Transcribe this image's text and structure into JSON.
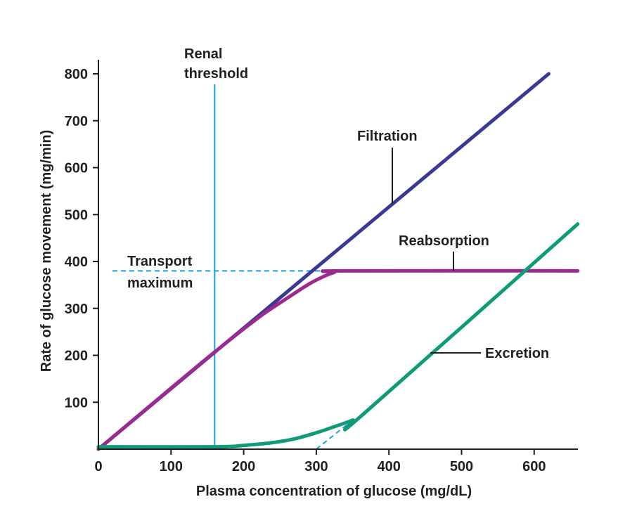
{
  "chart_data": {
    "type": "line",
    "title": "",
    "xlabel": "Plasma concentration of glucose (mg/dL)",
    "ylabel": "Rate of glucose movement (mg/min)",
    "xlim": [
      0,
      660
    ],
    "ylim": [
      0,
      800
    ],
    "x_ticks": [
      "0",
      "100",
      "200",
      "300",
      "400",
      "500",
      "600"
    ],
    "y_ticks": [
      "100",
      "200",
      "300",
      "400",
      "500",
      "600",
      "700",
      "800"
    ],
    "grid": false,
    "series": [
      {
        "name": "Filtration",
        "color": "#3a3a93",
        "points": [
          [
            0,
            0
          ],
          [
            620,
            800
          ]
        ]
      },
      {
        "name": "Reabsorption",
        "color": "#9b2a8f",
        "points": [
          [
            0,
            0
          ],
          [
            100,
            130
          ],
          [
            160,
            207
          ],
          [
            220,
            280
          ],
          [
            260,
            322
          ],
          [
            290,
            352
          ],
          [
            310,
            368
          ],
          [
            325,
            377
          ],
          [
            335,
            380
          ],
          [
            660,
            380
          ]
        ]
      },
      {
        "name": "Excretion",
        "color": "#0f9b78",
        "points": [
          [
            0,
            5
          ],
          [
            160,
            5
          ],
          [
            200,
            8
          ],
          [
            240,
            14
          ],
          [
            270,
            22
          ],
          [
            300,
            35
          ],
          [
            325,
            48
          ],
          [
            350,
            62
          ],
          [
            365,
            75
          ],
          [
            660,
            480
          ]
        ]
      }
    ],
    "reference_lines": {
      "renal_threshold_x": 160,
      "transport_maximum_y": 380,
      "excretion_extrapolation": [
        [
          300,
          0
        ],
        [
          350,
          62
        ]
      ],
      "color": "#1aa3d6"
    },
    "annotations": {
      "renal_threshold": [
        "Renal",
        "threshold"
      ],
      "transport_maximum": [
        "Transport",
        "maximum"
      ],
      "filtration": "Filtration",
      "reabsorption": "Reabsorption",
      "excretion": "Excretion"
    }
  }
}
